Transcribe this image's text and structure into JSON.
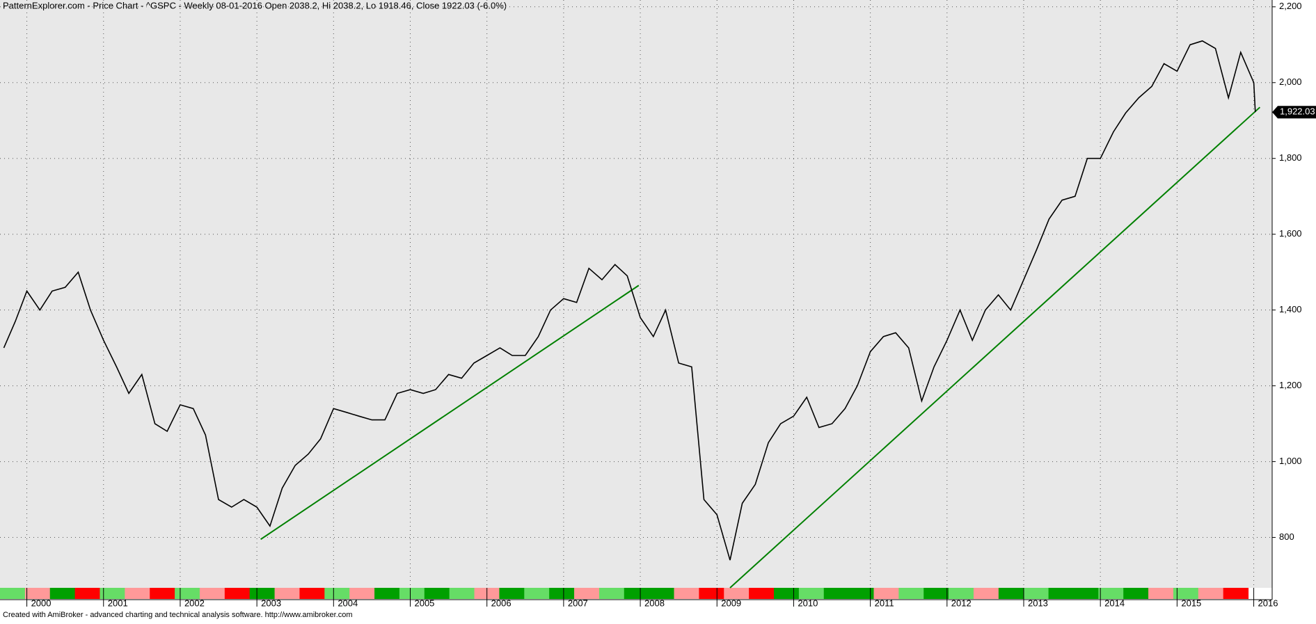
{
  "chart_data": {
    "type": "line",
    "title": "PatternExplorer.com - Price Chart - ^GSPC - Weekly 08-01-2016 Open 2038.2, Hi 2038.2, Lo 1918.46, Close 1922.03 (-6.0%)",
    "footer": "Created with AmiBroker - advanced charting and technical analysis software. http://www.amibroker.com",
    "x": [
      1999.7,
      1999.85,
      2000.0,
      2000.17,
      2000.33,
      2000.5,
      2000.67,
      2000.83,
      2001.0,
      2001.17,
      2001.33,
      2001.5,
      2001.67,
      2001.83,
      2002.0,
      2002.17,
      2002.33,
      2002.5,
      2002.67,
      2002.83,
      2003.0,
      2003.17,
      2003.33,
      2003.5,
      2003.67,
      2003.83,
      2004.0,
      2004.17,
      2004.33,
      2004.5,
      2004.67,
      2004.83,
      2005.0,
      2005.17,
      2005.33,
      2005.5,
      2005.67,
      2005.83,
      2006.0,
      2006.17,
      2006.33,
      2006.5,
      2006.67,
      2006.83,
      2007.0,
      2007.17,
      2007.33,
      2007.5,
      2007.67,
      2007.83,
      2008.0,
      2008.17,
      2008.33,
      2008.5,
      2008.67,
      2008.83,
      2009.0,
      2009.17,
      2009.33,
      2009.5,
      2009.67,
      2009.83,
      2010.0,
      2010.17,
      2010.33,
      2010.5,
      2010.67,
      2010.83,
      2011.0,
      2011.17,
      2011.33,
      2011.5,
      2011.67,
      2011.83,
      2012.0,
      2012.17,
      2012.33,
      2012.5,
      2012.67,
      2012.83,
      2013.0,
      2013.17,
      2013.33,
      2013.5,
      2013.67,
      2013.83,
      2014.0,
      2014.17,
      2014.33,
      2014.5,
      2014.67,
      2014.83,
      2015.0,
      2015.17,
      2015.33,
      2015.5,
      2015.67,
      2015.83,
      2016.0,
      2016.02
    ],
    "series": [
      {
        "name": "^GSPC",
        "color": "#000000",
        "values": [
          1300,
          1370,
          1450,
          1400,
          1450,
          1460,
          1500,
          1400,
          1320,
          1250,
          1180,
          1230,
          1100,
          1080,
          1150,
          1140,
          1070,
          900,
          880,
          900,
          880,
          830,
          930,
          990,
          1020,
          1060,
          1140,
          1130,
          1120,
          1110,
          1110,
          1180,
          1190,
          1180,
          1190,
          1230,
          1220,
          1260,
          1280,
          1300,
          1280,
          1280,
          1330,
          1400,
          1430,
          1420,
          1510,
          1480,
          1520,
          1490,
          1380,
          1330,
          1400,
          1260,
          1250,
          900,
          860,
          740,
          890,
          940,
          1050,
          1100,
          1120,
          1170,
          1090,
          1100,
          1140,
          1200,
          1290,
          1330,
          1340,
          1300,
          1160,
          1250,
          1320,
          1400,
          1320,
          1400,
          1440,
          1400,
          1480,
          1560,
          1640,
          1690,
          1700,
          1800,
          1800,
          1870,
          1920,
          1960,
          1990,
          2050,
          2030,
          2100,
          2110,
          2090,
          1960,
          2080,
          2000,
          1922.03
        ]
      }
    ],
    "last_close": {
      "value": 1922.03,
      "label": "1,922.03"
    },
    "trendlines": [
      {
        "color": "#008000",
        "x": [
          2003.05,
          2007.98
        ],
        "values": [
          795,
          1465
        ]
      },
      {
        "color": "#008000",
        "x": [
          2009.17,
          2016.08
        ],
        "values": [
          667,
          1935
        ]
      }
    ],
    "xlim": [
      1999.65,
      2016.24
    ],
    "xticks": [
      2000,
      2001,
      2002,
      2003,
      2004,
      2005,
      2006,
      2007,
      2008,
      2009,
      2010,
      2011,
      2012,
      2013,
      2014,
      2015,
      2016
    ],
    "ylim": [
      667,
      2218
    ],
    "yticks": [
      {
        "value": 800,
        "label": "800"
      },
      {
        "value": 1000,
        "label": "1,000"
      },
      {
        "value": 1200,
        "label": "1,200"
      },
      {
        "value": 1400,
        "label": "1,400"
      },
      {
        "value": 1600,
        "label": "1,600"
      },
      {
        "value": 1800,
        "label": "1,800"
      },
      {
        "value": 2000,
        "label": "2,000"
      },
      {
        "value": 2200,
        "label": "2,200"
      }
    ],
    "grid": true,
    "strip_colors": [
      "#66dd66",
      "#ff9999",
      "#00a000",
      "#ff0000",
      "#66dd66",
      "#ff9999",
      "#ff0000",
      "#66dd66",
      "#ff9999",
      "#ff0000",
      "#00a000",
      "#ff9999",
      "#ff0000",
      "#66dd66",
      "#ff9999",
      "#00a000",
      "#66dd66",
      "#00a000",
      "#66dd66",
      "#ff9999",
      "#00a000",
      "#66dd66",
      "#00a000",
      "#ff9999",
      "#66dd66",
      "#00a000",
      "#00a000",
      "#ff9999",
      "#ff0000",
      "#ff9999",
      "#ff0000",
      "#00a000",
      "#66dd66",
      "#00a000",
      "#00a000",
      "#ff9999",
      "#66dd66",
      "#00a000",
      "#66dd66",
      "#ff9999",
      "#00a000",
      "#66dd66",
      "#00a000",
      "#00a000",
      "#66dd66",
      "#00a000",
      "#ff9999",
      "#66dd66",
      "#ff9999",
      "#ff0000"
    ]
  }
}
